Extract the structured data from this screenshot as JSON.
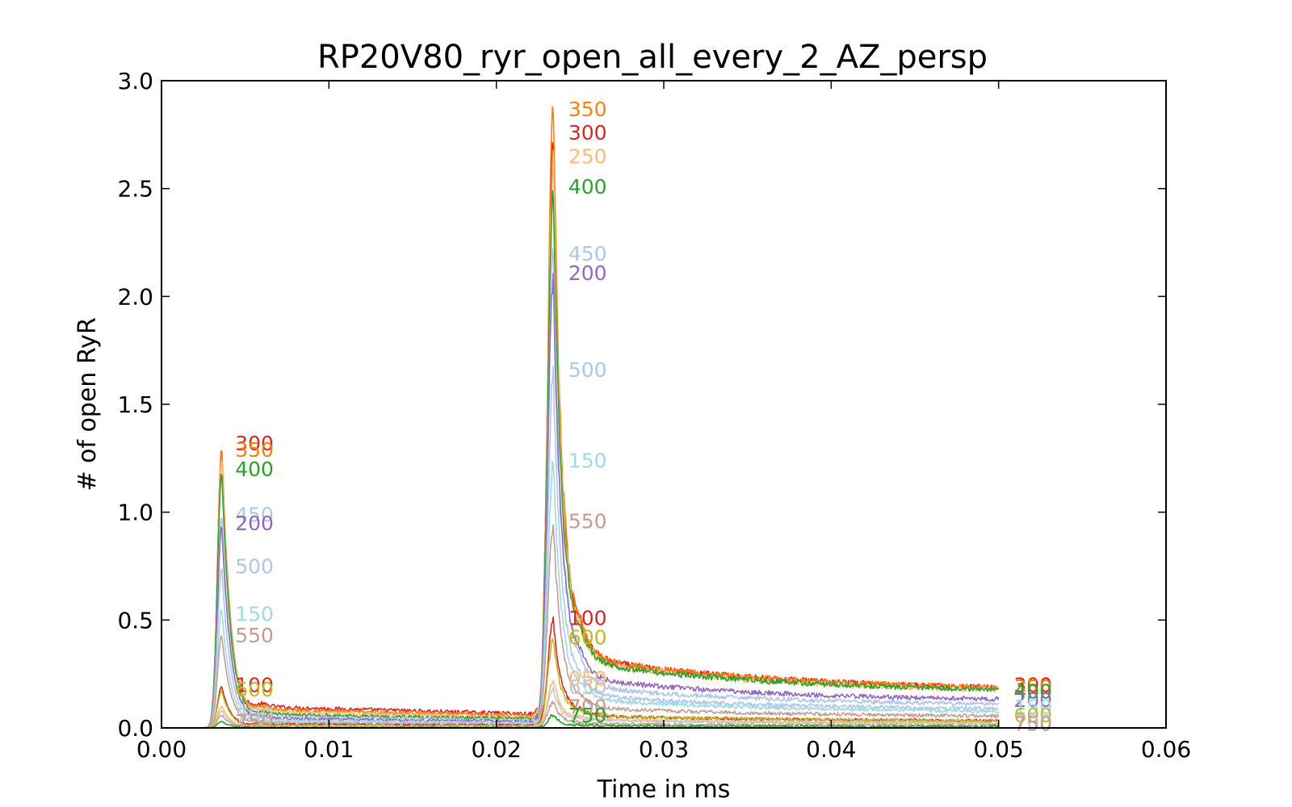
{
  "chart_data": {
    "type": "line",
    "title": "RP20V80_ryr_open_all_every_2_AZ_persp",
    "xlabel": "Time in ms",
    "ylabel": "# of open RyR",
    "xlim": [
      0.0,
      0.06
    ],
    "ylim": [
      0.0,
      3.0
    ],
    "xticks": [
      "0.00",
      "0.01",
      "0.02",
      "0.03",
      "0.04",
      "0.05",
      "0.06"
    ],
    "yticks": [
      "0.0",
      "0.5",
      "1.0",
      "1.5",
      "2.0",
      "2.5",
      "3.0"
    ],
    "grid": false,
    "legend": "inline labels at peaks and line ends",
    "series": [
      {
        "name": "300",
        "color": "#d62728",
        "peak1": 1.3,
        "peak2": 2.75,
        "end": 0.17
      },
      {
        "name": "350",
        "color": "#ff7f0e",
        "peak1": 1.29,
        "peak2": 2.86,
        "end": 0.17
      },
      {
        "name": "250",
        "color": "#ffbb78",
        "peak1": 1.25,
        "peak2": 2.64,
        "end": 0.16
      },
      {
        "name": "400",
        "color": "#2ca02c",
        "peak1": 1.19,
        "peak2": 2.53,
        "end": 0.16
      },
      {
        "name": "450",
        "color": "#aec7e8",
        "peak1": 0.98,
        "peak2": 2.21,
        "end": 0.1
      },
      {
        "name": "200",
        "color": "#9467bd",
        "peak1": 0.94,
        "peak2": 2.09,
        "end": 0.12
      },
      {
        "name": "500",
        "color": "#aec7e8",
        "peak1": 0.74,
        "peak2": 1.63,
        "end": 0.08
      },
      {
        "name": "150",
        "color": "#9edae5",
        "peak1": 0.55,
        "peak2": 1.23,
        "end": 0.07
      },
      {
        "name": "550",
        "color": "#c49c94",
        "peak1": 0.43,
        "peak2": 0.94,
        "end": 0.05
      },
      {
        "name": "100",
        "color": "#d62728",
        "peak1": 0.19,
        "peak2": 0.5,
        "end": 0.03
      },
      {
        "name": "600",
        "color": "#bcbd22",
        "peak1": 0.17,
        "peak2": 0.41,
        "end": 0.03
      },
      {
        "name": "050",
        "color": "#ffbb78",
        "peak1": 0.1,
        "peak2": 0.22,
        "end": 0.02
      },
      {
        "name": "650",
        "color": "#c7c7c7",
        "peak1": 0.08,
        "peak2": 0.18,
        "end": 0.02
      },
      {
        "name": "700",
        "color": "#c49c94",
        "peak1": 0.06,
        "peak2": 0.12,
        "end": 0.01
      },
      {
        "name": "750",
        "color": "#2ca02c",
        "peak1": 0.03,
        "peak2": 0.06,
        "end": 0.005
      }
    ],
    "annotations": [
      {
        "text": "300",
        "color": "#d62728",
        "x": 0.0044,
        "y": 1.32
      },
      {
        "text": "350",
        "color": "#ff7f0e",
        "x": 0.0044,
        "y": 1.29
      },
      {
        "text": "400",
        "color": "#2ca02c",
        "x": 0.0044,
        "y": 1.2
      },
      {
        "text": "450",
        "color": "#aec7e8",
        "x": 0.0044,
        "y": 0.99
      },
      {
        "text": "200",
        "color": "#9467bd",
        "x": 0.0044,
        "y": 0.95
      },
      {
        "text": "500",
        "color": "#aec7e8",
        "x": 0.0044,
        "y": 0.75
      },
      {
        "text": "150",
        "color": "#9edae5",
        "x": 0.0044,
        "y": 0.53
      },
      {
        "text": "550",
        "color": "#c49c94",
        "x": 0.0044,
        "y": 0.43
      },
      {
        "text": "100",
        "color": "#d62728",
        "x": 0.0044,
        "y": 0.2
      },
      {
        "text": "600",
        "color": "#bcbd22",
        "x": 0.0044,
        "y": 0.18
      },
      {
        "text": "700",
        "color": "#c7c7c7",
        "x": 0.0044,
        "y": 0.06
      },
      {
        "text": "750",
        "color": "#c49c94",
        "x": 0.0044,
        "y": 0.03
      },
      {
        "text": "350",
        "color": "#ff7f0e",
        "x": 0.0243,
        "y": 2.87
      },
      {
        "text": "300",
        "color": "#d62728",
        "x": 0.0243,
        "y": 2.76
      },
      {
        "text": "250",
        "color": "#ffbb78",
        "x": 0.0243,
        "y": 2.65
      },
      {
        "text": "400",
        "color": "#2ca02c",
        "x": 0.0243,
        "y": 2.51
      },
      {
        "text": "450",
        "color": "#aec7e8",
        "x": 0.0243,
        "y": 2.2
      },
      {
        "text": "200",
        "color": "#9467bd",
        "x": 0.0243,
        "y": 2.11
      },
      {
        "text": "500",
        "color": "#aec7e8",
        "x": 0.0243,
        "y": 1.66
      },
      {
        "text": "150",
        "color": "#9edae5",
        "x": 0.0243,
        "y": 1.24
      },
      {
        "text": "550",
        "color": "#c49c94",
        "x": 0.0243,
        "y": 0.96
      },
      {
        "text": "100",
        "color": "#d62728",
        "x": 0.0243,
        "y": 0.51
      },
      {
        "text": "600",
        "color": "#bcbd22",
        "x": 0.0243,
        "y": 0.42
      },
      {
        "text": "050",
        "color": "#ffbb78",
        "x": 0.0243,
        "y": 0.23
      },
      {
        "text": "650",
        "color": "#c7c7c7",
        "x": 0.0243,
        "y": 0.19
      },
      {
        "text": "700",
        "color": "#c49c94",
        "x": 0.0243,
        "y": 0.1
      },
      {
        "text": "750",
        "color": "#2ca02c",
        "x": 0.0243,
        "y": 0.06
      },
      {
        "text": "300",
        "color": "#d62728",
        "x": 0.0509,
        "y": 0.2
      },
      {
        "text": "350",
        "color": "#ff7f0e",
        "x": 0.0509,
        "y": 0.19
      },
      {
        "text": "400",
        "color": "#2ca02c",
        "x": 0.0509,
        "y": 0.17
      },
      {
        "text": "200",
        "color": "#9467bd",
        "x": 0.0509,
        "y": 0.13
      },
      {
        "text": "150",
        "color": "#9edae5",
        "x": 0.0509,
        "y": 0.1
      },
      {
        "text": "600",
        "color": "#bcbd22",
        "x": 0.0509,
        "y": 0.06
      },
      {
        "text": "700",
        "color": "#c7c7c7",
        "x": 0.0509,
        "y": 0.03
      },
      {
        "text": "750",
        "color": "#c49c94",
        "x": 0.0509,
        "y": 0.02
      }
    ]
  }
}
